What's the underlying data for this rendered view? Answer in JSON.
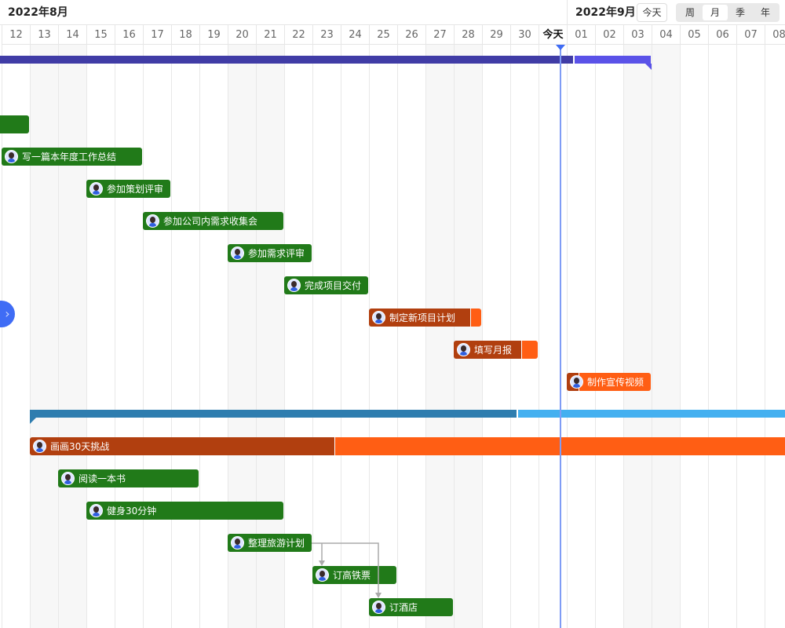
{
  "header": {
    "month_left": "2022年8月",
    "month_right": "2022年9月",
    "today_button": "今天",
    "view_modes": [
      "周",
      "月",
      "季",
      "年"
    ],
    "active_view": "月"
  },
  "days": [
    "12",
    "13",
    "14",
    "15",
    "16",
    "17",
    "18",
    "19",
    "20",
    "21",
    "22",
    "23",
    "24",
    "25",
    "26",
    "27",
    "28",
    "29",
    "30",
    "今天",
    "01",
    "02",
    "03",
    "04",
    "05",
    "06",
    "07",
    "08"
  ],
  "weekend_days": [
    "13",
    "14",
    "20",
    "21",
    "27",
    "28",
    "03",
    "04"
  ],
  "today_label": "今天",
  "colors": {
    "done_green": "#217a19",
    "task_dark": "#b13f0f",
    "task_orange": "#ff5e14",
    "project1_done": "#403ca6",
    "project1_rest": "#5a52e8",
    "project2_done": "#2e7daf",
    "project2_rest": "#44b0f0",
    "today_line": "#7f9cf5",
    "accent": "#3f6cf5"
  },
  "rows": [
    {
      "type": "project",
      "start": "2022-08-01",
      "end": "2022-09-03",
      "progress_to": "2022-09-01",
      "dark": "#403ca6",
      "light": "#5a52e8"
    },
    {
      "type": "task",
      "name": "",
      "start": "2022-08-01",
      "end": "2022-08-12",
      "status": "done"
    },
    {
      "type": "task",
      "name": "写一篇本年度工作总结",
      "start": "2022-08-12",
      "end": "2022-08-16",
      "status": "done"
    },
    {
      "type": "task",
      "name": "参加策划评审",
      "start": "2022-08-15",
      "end": "2022-08-17",
      "status": "done"
    },
    {
      "type": "task",
      "name": "参加公司内需求收集会",
      "start": "2022-08-17",
      "end": "2022-08-21",
      "status": "done"
    },
    {
      "type": "task",
      "name": "参加需求评审",
      "start": "2022-08-20",
      "end": "2022-08-22",
      "status": "done"
    },
    {
      "type": "task",
      "name": "完成项目交付",
      "start": "2022-08-22",
      "end": "2022-08-24",
      "status": "done"
    },
    {
      "type": "task",
      "name": "制定新项目计划",
      "start": "2022-08-25",
      "end": "2022-08-28",
      "status": "progress",
      "progress": 0.9
    },
    {
      "type": "task",
      "name": "填写月报",
      "start": "2022-08-28",
      "end": "2022-08-30",
      "status": "progress",
      "progress": 0.8
    },
    {
      "type": "task",
      "name": "制作宣传视频",
      "start": "2022-09-01",
      "end": "2022-09-03",
      "status": "progress",
      "progress": 0.14
    },
    {
      "type": "project",
      "start": "2022-08-13",
      "end": "2022-09-30",
      "progress_to": "2022-08-30",
      "dark": "#2e7daf",
      "light": "#44b0f0",
      "flag": "left"
    },
    {
      "type": "task",
      "name": "画画30天挑战",
      "start": "2022-08-13",
      "end": "2022-09-11",
      "status": "progress",
      "progress": 0.36
    },
    {
      "type": "task",
      "name": "阅读一本书",
      "start": "2022-08-14",
      "end": "2022-08-18",
      "status": "done"
    },
    {
      "type": "task",
      "name": "健身30分钟",
      "start": "2022-08-15",
      "end": "2022-08-21",
      "status": "done"
    },
    {
      "type": "task",
      "name": "整理旅游计划",
      "start": "2022-08-20",
      "end": "2022-08-22",
      "status": "done"
    },
    {
      "type": "task",
      "name": "订高铁票",
      "start": "2022-08-23",
      "end": "2022-08-25",
      "status": "done"
    },
    {
      "type": "task",
      "name": "订酒店",
      "start": "2022-08-25",
      "end": "2022-08-27",
      "status": "done"
    }
  ],
  "dependencies": [
    {
      "from": "整理旅游计划",
      "to": "订高铁票"
    },
    {
      "from": "整理旅游计划",
      "to": "订酒店"
    }
  ]
}
